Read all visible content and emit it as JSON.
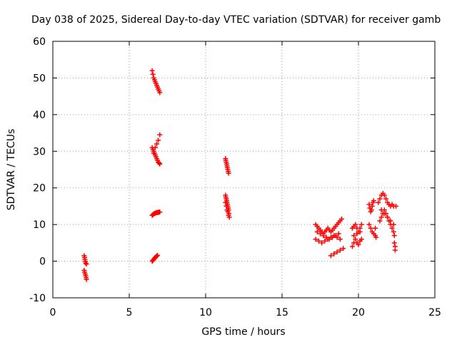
{
  "chart_data": {
    "type": "scatter",
    "title": "Day 038 of 2025, Sidereal Day-to-day VTEC variation (SDTVAR) for receiver gamb",
    "xlabel": "GPS time / hours",
    "ylabel": "SDTVAR / TECUs",
    "xlim": [
      0,
      25
    ],
    "ylim": [
      -10,
      60
    ],
    "xticks": [
      0,
      5,
      10,
      15,
      20,
      25
    ],
    "yticks": [
      -10,
      0,
      10,
      20,
      30,
      40,
      50,
      60
    ],
    "grid": true,
    "legend": "none",
    "marker": "+",
    "color": "#ff0000",
    "series": [
      {
        "x": [
          2.05,
          2.08,
          2.1,
          2.12,
          2.15,
          2.2,
          2.05,
          2.08,
          2.12,
          2.15,
          2.18,
          2.2
        ],
        "y": [
          1.5,
          1.0,
          0.5,
          0.0,
          -0.5,
          -0.8,
          -2.5,
          -3.0,
          -3.5,
          -4.0,
          -4.5,
          -5.0
        ]
      },
      {
        "x": [
          6.5,
          6.55,
          6.6,
          6.65,
          6.7,
          6.75,
          6.8,
          6.85,
          6.9,
          6.95,
          7.0
        ],
        "y": [
          52,
          51,
          50,
          49.5,
          49,
          48.5,
          48,
          47.5,
          47,
          46.5,
          46
        ]
      },
      {
        "x": [
          6.5,
          6.55,
          6.6,
          6.65,
          6.7,
          6.75,
          6.8,
          6.85,
          6.9,
          6.95,
          7.0,
          6.6,
          6.7,
          6.8,
          6.9,
          7.0
        ],
        "y": [
          31,
          30.5,
          30,
          29.5,
          29,
          28.5,
          28,
          27.5,
          27,
          26.8,
          26.5,
          29.5,
          31,
          32,
          33,
          34.5
        ]
      },
      {
        "x": [
          6.5,
          6.55,
          6.6,
          6.65,
          6.7,
          6.75,
          6.8,
          6.85,
          6.9,
          6.95,
          7.0
        ],
        "y": [
          12.5,
          12.7,
          12.9,
          13.0,
          13.1,
          13.2,
          13.2,
          13.3,
          13.3,
          13.4,
          13.4
        ]
      },
      {
        "x": [
          6.5,
          6.55,
          6.6,
          6.65,
          6.7,
          6.75,
          6.8,
          6.85
        ],
        "y": [
          0,
          0.2,
          0.5,
          0.8,
          1.0,
          1.2,
          1.4,
          1.6
        ]
      },
      {
        "x": [
          11.3,
          11.32,
          11.35,
          11.38,
          11.4,
          11.42,
          11.45,
          11.48,
          11.5
        ],
        "y": [
          28,
          27.5,
          27,
          26.5,
          26,
          25.5,
          25,
          24.5,
          24
        ]
      },
      {
        "x": [
          11.3,
          11.32,
          11.35,
          11.38,
          11.4,
          11.42,
          11.45,
          11.48,
          11.5,
          11.52,
          11.55,
          11.3,
          11.35,
          11.4,
          11.45,
          11.5
        ],
        "y": [
          18,
          17.5,
          17,
          16.5,
          16,
          15.5,
          15,
          14.5,
          14,
          13,
          12,
          16,
          15,
          14,
          13.5,
          12.5
        ]
      },
      {
        "x": [
          17.2,
          17.3,
          17.4,
          17.5,
          17.6,
          17.7,
          17.8,
          17.9,
          18.0,
          18.1,
          18.2,
          18.3,
          18.4,
          18.5,
          18.6,
          18.7,
          18.8,
          18.9,
          17.2,
          17.4,
          17.6,
          17.8,
          18.0,
          18.2,
          18.4,
          18.6,
          18.8,
          17.3,
          17.5,
          17.7,
          17.9,
          18.1,
          18.3,
          18.5,
          18.7,
          18.2,
          18.4,
          18.6,
          18.8,
          19.0
        ],
        "y": [
          10,
          9.5,
          9,
          8.5,
          8,
          7.5,
          8,
          8.5,
          9,
          8.5,
          8,
          8.5,
          9,
          9.5,
          10,
          10.5,
          11,
          11.5,
          6,
          5.5,
          5,
          5.5,
          6,
          6.5,
          7,
          6.5,
          6,
          8,
          7.5,
          7,
          6.5,
          6,
          6.5,
          7,
          7.5,
          1.5,
          2,
          2.5,
          3,
          3.5
        ]
      },
      {
        "x": [
          19.6,
          19.7,
          19.8,
          19.9,
          20.0,
          20.1,
          20.2,
          19.6,
          19.7,
          19.8,
          19.9,
          20.0,
          20.1,
          20.2,
          19.7,
          19.9,
          20.1
        ],
        "y": [
          9,
          9.5,
          10,
          9,
          8,
          9,
          10,
          4,
          5,
          6,
          5,
          4.5,
          5.5,
          6,
          7,
          7.5,
          8
        ]
      },
      {
        "x": [
          20.7,
          20.75,
          20.8,
          20.85,
          20.9,
          20.95,
          21.0,
          20.7,
          20.8,
          20.9,
          21.0,
          21.1,
          21.1,
          21.15
        ],
        "y": [
          15.5,
          14.5,
          13.5,
          14,
          15,
          16,
          16.5,
          10,
          9,
          8,
          7.5,
          7,
          9,
          6.5
        ]
      },
      {
        "x": [
          21.3,
          21.4,
          21.5,
          21.6,
          21.7,
          21.8,
          21.9,
          22.0,
          22.1,
          22.2,
          22.3,
          21.4,
          21.5,
          21.6,
          21.7,
          21.8,
          21.9,
          22.0,
          22.1,
          22.2,
          22.3,
          21.5,
          21.7,
          21.9,
          22.1,
          22.3,
          22.35,
          22.35,
          22.4,
          22.4,
          22.45
        ],
        "y": [
          16,
          17,
          18,
          18.5,
          18,
          17,
          16,
          15.5,
          15,
          15.5,
          15,
          11,
          12,
          13,
          14,
          13,
          12,
          11,
          10,
          9,
          8,
          14,
          13,
          12,
          11,
          10,
          7,
          5,
          4,
          3,
          15
        ]
      }
    ]
  }
}
